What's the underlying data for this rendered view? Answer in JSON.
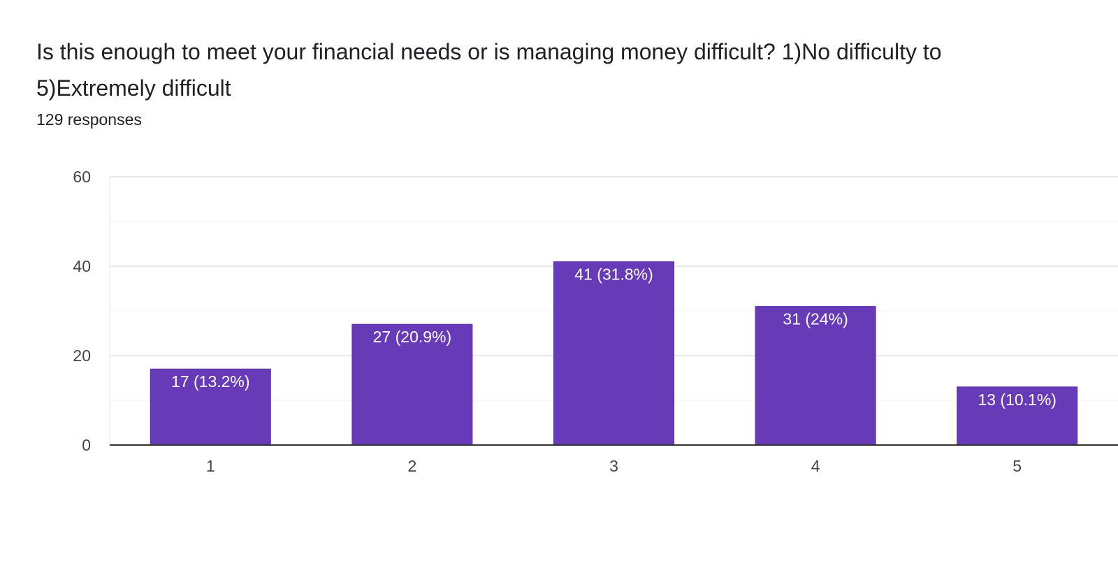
{
  "question": {
    "title": "Is this enough to meet your financial needs or is managing money difficult? 1)No difficulty to 5)Extremely difficult",
    "responses": "129 responses"
  },
  "colors": {
    "bar": "#673ab7",
    "bar_label": "#ffffff",
    "grid": "#e8e8e8",
    "minor_grid": "#f2f2f2",
    "axis": "#333333",
    "tick_label": "#444444"
  },
  "chart_data": {
    "type": "bar",
    "categories": [
      "1",
      "2",
      "3",
      "4",
      "5"
    ],
    "values": [
      17,
      27,
      41,
      31,
      13
    ],
    "data_labels": [
      "17 (13.2%)",
      "27 (20.9%)",
      "41 (31.8%)",
      "31 (24%)",
      "13 (10.1%)"
    ],
    "y_ticks": [
      "0",
      "20",
      "40",
      "60"
    ],
    "ylim": [
      0,
      60
    ],
    "minor_grid_values": [
      10,
      30,
      50
    ],
    "grid": true,
    "legend": "none"
  }
}
